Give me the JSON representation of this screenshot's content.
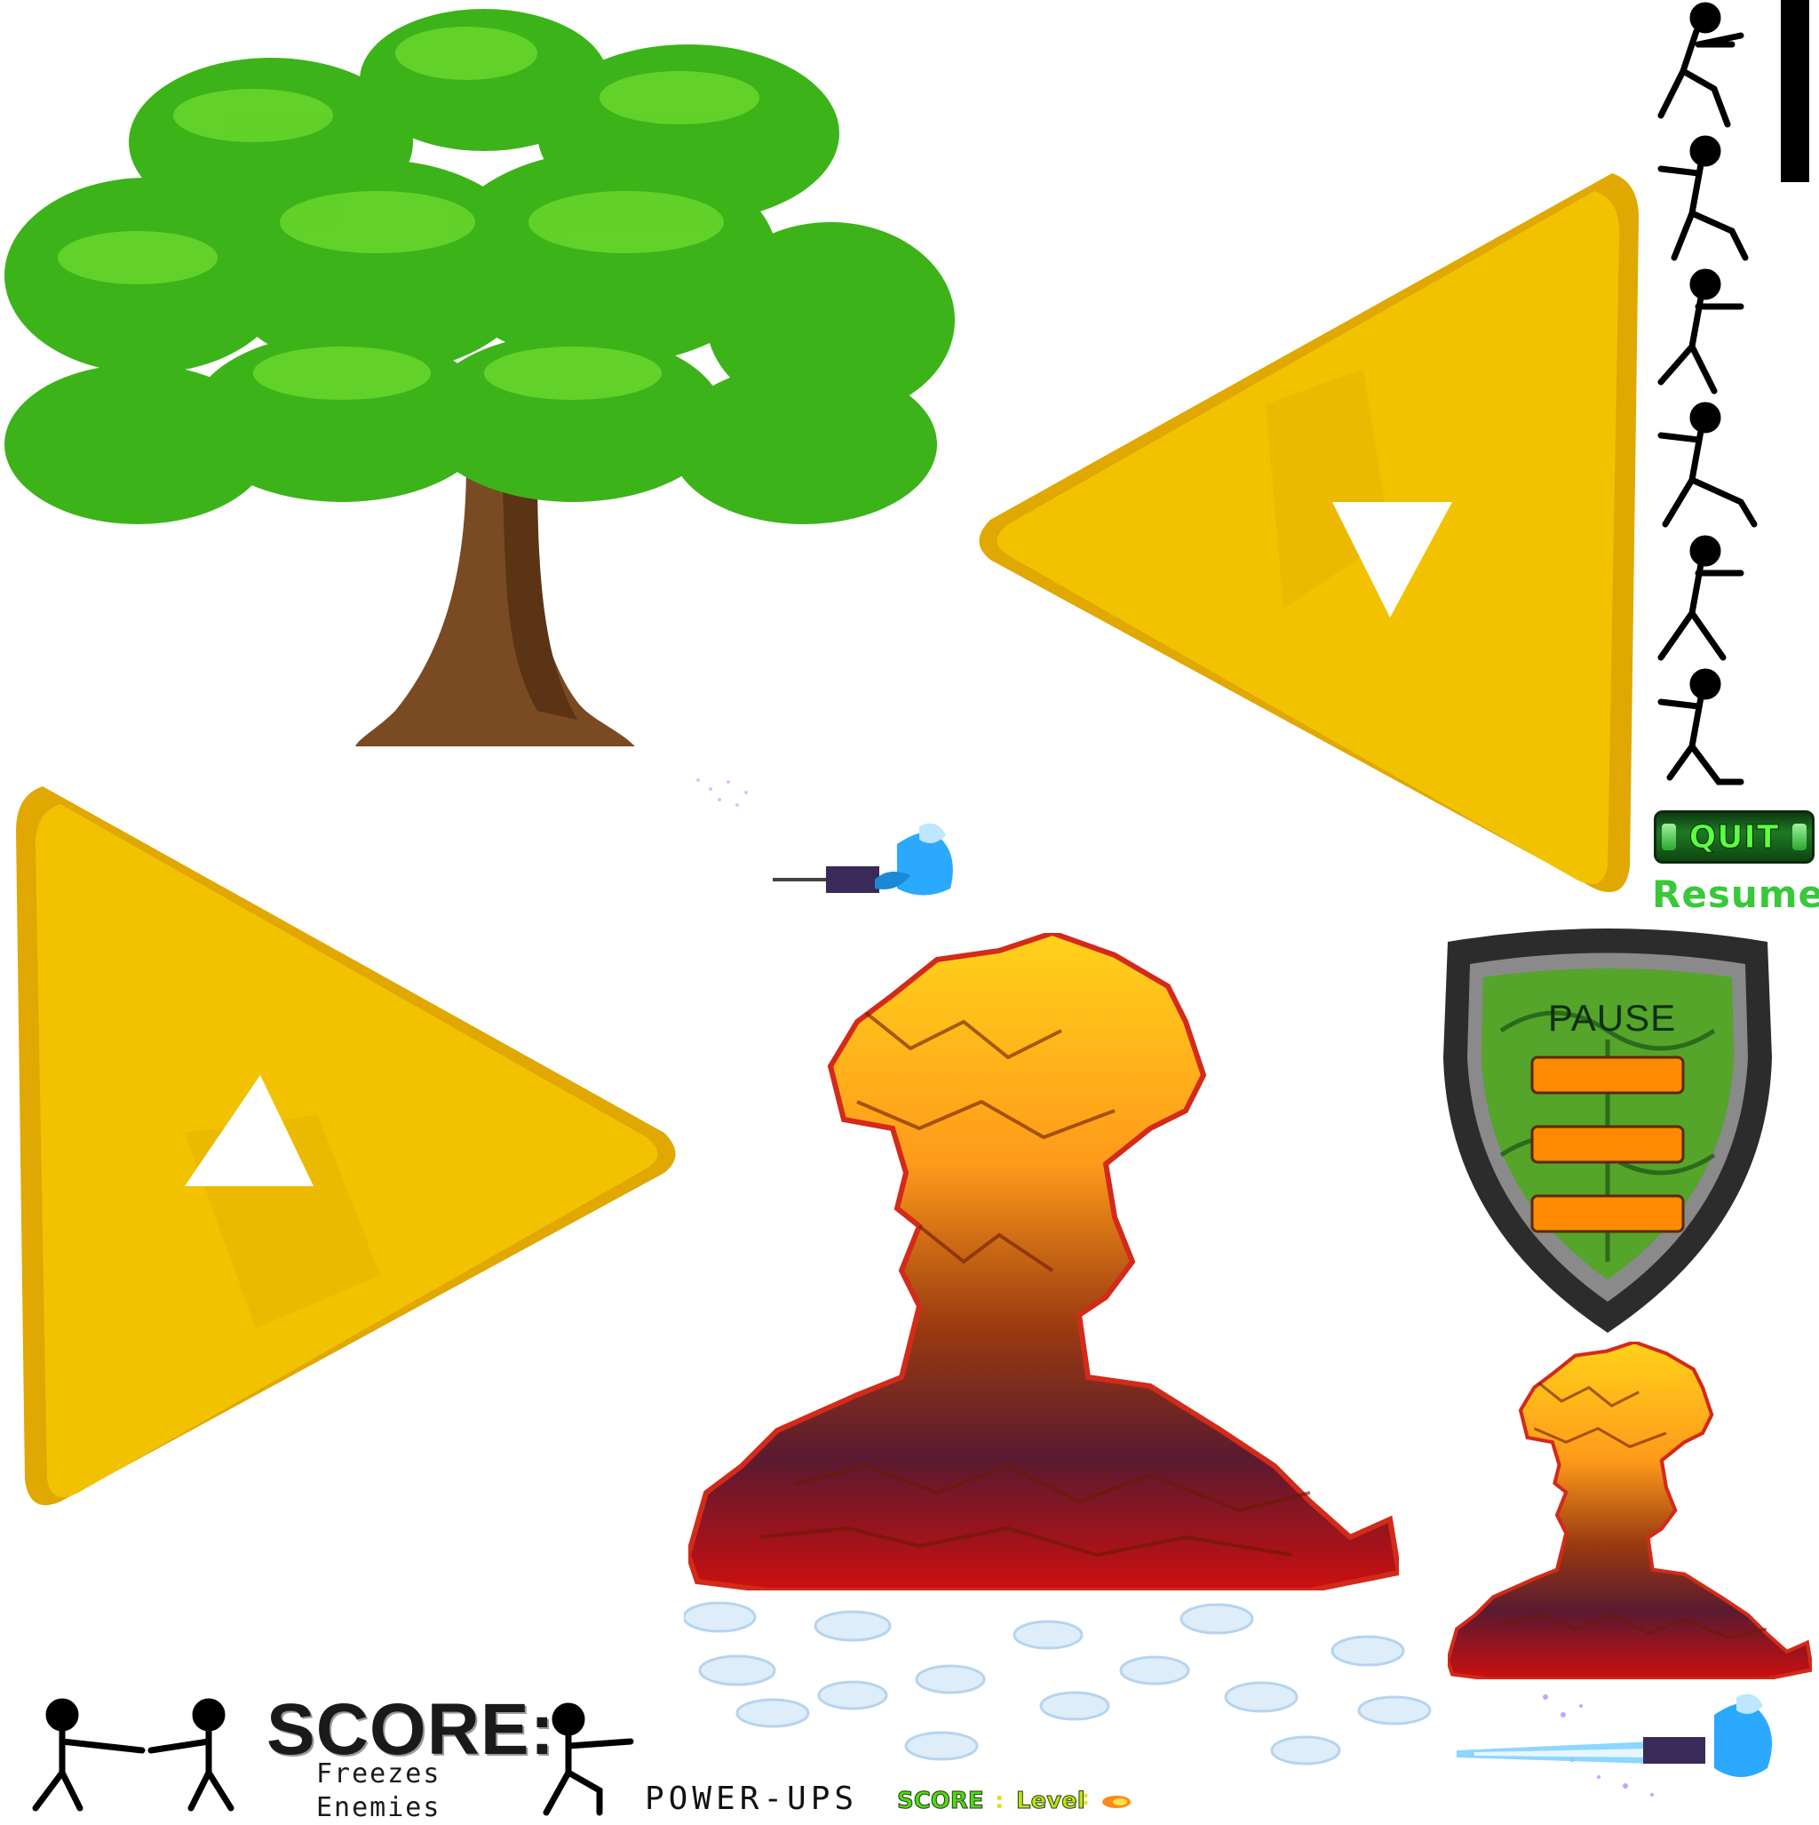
{
  "menu": {
    "quit_label": "QUIT",
    "resume_label": "Resume",
    "pause_label": "PAUSE"
  },
  "hud": {
    "score_title": "SCORE:",
    "powerup_desc_line1": "Freezes",
    "powerup_desc_line2": "Enemies",
    "powerups_label": "POWER-UPS",
    "score_small": "SCORE",
    "score_colon": ":",
    "level_small": "Level",
    "level_colon": ":"
  },
  "colors": {
    "tree_leaves": "#3db31a",
    "tree_trunk": "#7a4a22",
    "triforce_gold": "#f2c200",
    "triforce_shade": "#d9a400",
    "explosion_top": "#ffd21a",
    "explosion_bottom": "#cc0f0f",
    "shield_frame": "#2c2c2c",
    "shield_inner": "#2e8a2a",
    "pause_bar": "#ff8a00",
    "quit_green": "#5cff3c",
    "resume_green": "#38c83a",
    "stickman": "#000000"
  },
  "sprites": [
    "tree",
    "triforce-large-right",
    "triforce-large-left",
    "stickman-run-sequence",
    "quit-button",
    "resume-label",
    "pause-shield",
    "explosion-large",
    "explosion-small",
    "clouds",
    "ice-mage-character",
    "ice-mage-character-beam",
    "stickman-pair-shooting",
    "stickman-kneel-shooting"
  ]
}
